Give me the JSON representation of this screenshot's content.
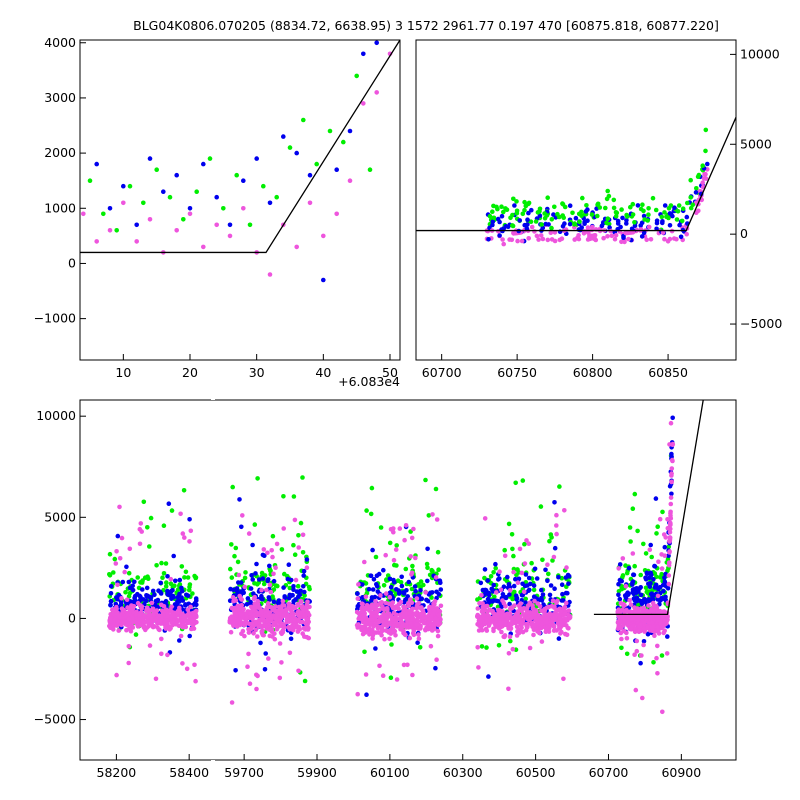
{
  "title": "BLG04K0806.070205 (8834.72, 6638.95)    3 1572 2961.77 0.197 470 [60875.818, 60877.220]",
  "colors": {
    "green": "#00ee00",
    "blue": "#0000ee",
    "pink": "#ee55dd",
    "model": "#000000"
  },
  "chart_data": [
    {
      "type": "scatter",
      "panel": "top-left",
      "xlim": [
        3.5,
        51.5
      ],
      "ylim": [
        -1750,
        4050
      ],
      "xticks": [
        "10",
        "20",
        "30",
        "40",
        "50"
      ],
      "yticks": [
        "−1000",
        "0",
        "1000",
        "2000",
        "3000",
        "4000"
      ],
      "x_offset_label": "+6.083e4",
      "model": {
        "x": [
          3.5,
          31.4,
          51.5
        ],
        "y": [
          200,
          200,
          4050
        ]
      },
      "series": [
        {
          "color": "green",
          "x": [
            5,
            7,
            9,
            11,
            13,
            15,
            17,
            19,
            21,
            23,
            25,
            27,
            29,
            31,
            33,
            35,
            37,
            39,
            41,
            43,
            45,
            47
          ],
          "y": [
            1500,
            900,
            600,
            1400,
            1100,
            1700,
            1200,
            800,
            1300,
            1900,
            1000,
            1600,
            700,
            1400,
            1200,
            2100,
            2600,
            1800,
            2400,
            2200,
            3400,
            1700
          ]
        },
        {
          "color": "blue",
          "x": [
            6,
            8,
            10,
            12,
            14,
            16,
            18,
            20,
            22,
            24,
            26,
            28,
            30,
            32,
            34,
            36,
            38,
            40,
            42,
            44,
            46,
            48
          ],
          "y": [
            1800,
            1000,
            1400,
            700,
            1900,
            1300,
            1600,
            1000,
            1800,
            1200,
            700,
            1500,
            1900,
            1100,
            2300,
            2000,
            1600,
            -300,
            1700,
            2400,
            3800,
            4000
          ]
        },
        {
          "color": "pink",
          "x": [
            4,
            6,
            8,
            10,
            12,
            14,
            16,
            18,
            20,
            22,
            24,
            26,
            28,
            30,
            32,
            34,
            36,
            38,
            40,
            42,
            44,
            46,
            48,
            50
          ],
          "y": [
            900,
            400,
            600,
            1100,
            400,
            800,
            200,
            600,
            900,
            300,
            700,
            500,
            1000,
            200,
            -200,
            700,
            300,
            1100,
            500,
            900,
            1500,
            2900,
            3100,
            3800
          ]
        }
      ]
    },
    {
      "type": "scatter",
      "panel": "top-right",
      "xlim": [
        60683,
        60895
      ],
      "ylim": [
        -7000,
        10800
      ],
      "xticks": [
        "60700",
        "60750",
        "60800",
        "60850"
      ],
      "yticks": [
        "−5000",
        "0",
        "5000",
        "10000"
      ],
      "model": {
        "x": [
          60683,
          60862,
          60895
        ],
        "y": [
          200,
          200,
          6500
        ]
      },
      "series": [
        {
          "color": "green",
          "x": [
            60735,
            60750,
            60765,
            60780,
            60795,
            60810,
            60825,
            60840,
            60855,
            60865,
            60870,
            60875
          ],
          "y": [
            800,
            1300,
            900,
            1700,
            1100,
            2400,
            1500,
            2000,
            1300,
            3000,
            2300,
            5800
          ]
        },
        {
          "color": "blue",
          "x": [
            60740,
            60755,
            60770,
            60785,
            60800,
            60815,
            60830,
            60845,
            60860,
            60868,
            60872,
            60876
          ],
          "y": [
            1000,
            500,
            1400,
            800,
            1200,
            900,
            1600,
            1100,
            1300,
            1800,
            2700,
            3900
          ]
        },
        {
          "color": "pink",
          "x": [
            60730,
            60745,
            60760,
            60775,
            60790,
            60805,
            60820,
            60835,
            60850,
            60862,
            60870,
            60876
          ],
          "y": [
            200,
            -300,
            400,
            100,
            -200,
            300,
            0,
            200,
            -400,
            500,
            1300,
            3600
          ]
        }
      ]
    },
    {
      "type": "scatter",
      "panel": "bottom",
      "segments": [
        {
          "xlim": [
            58100,
            58460
          ],
          "xticks": [
            "58200",
            "58400"
          ]
        },
        {
          "xlim": [
            59620,
            61050
          ],
          "xticks": [
            "59700",
            "59900",
            "60100",
            "60300",
            "60500",
            "60700",
            "60900"
          ]
        }
      ],
      "ylim": [
        -7000,
        10800
      ],
      "yticks": [
        "−5000",
        "0",
        "5000",
        "10000"
      ],
      "model": {
        "x": [
          60660,
          60862,
          60960
        ],
        "y": [
          200,
          200,
          10800
        ]
      },
      "seasons": [
        {
          "x0": 58180,
          "x1": 58420,
          "pink_sd": 350,
          "blue_mean": 700,
          "blue_sd": 600
        },
        {
          "x0": 59660,
          "x1": 59880,
          "pink_sd": 500,
          "blue_mean": 600,
          "blue_sd": 900
        },
        {
          "x0": 60010,
          "x1": 60240,
          "pink_sd": 500,
          "blue_mean": 700,
          "blue_sd": 900
        },
        {
          "x0": 60340,
          "x1": 60595,
          "pink_sd": 450,
          "blue_mean": 900,
          "blue_sd": 800
        },
        {
          "x0": 60725,
          "x1": 60877,
          "pink_sd": 400,
          "blue_mean": 900,
          "blue_sd": 1000
        }
      ]
    }
  ]
}
